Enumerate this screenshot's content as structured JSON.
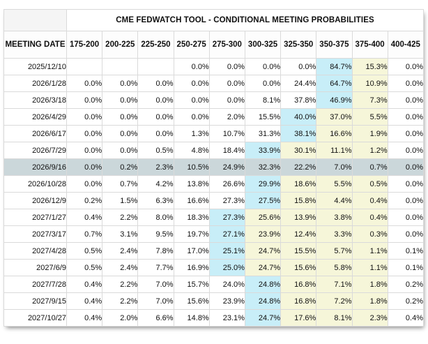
{
  "table": {
    "title": "CME FEDWATCH TOOL - CONDITIONAL MEETING PROBABILITIES",
    "meeting_date_header": "MEETING DATE",
    "colors": {
      "max_probability_cell": "#c8eef8",
      "path_highlight_cell": "#f6f6d9",
      "selected_row": "#cbd7da",
      "corner_cell": "#f5f5f5",
      "grid_border": "#dadada"
    }
  },
  "chart_data": {
    "type": "table",
    "title": "CME FEDWATCH TOOL - CONDITIONAL MEETING PROBABILITIES",
    "row_header": "MEETING DATE",
    "columns": [
      "175-200",
      "200-225",
      "225-250",
      "250-275",
      "275-300",
      "300-325",
      "325-350",
      "350-375",
      "375-400",
      "400-425"
    ],
    "unit": "%",
    "rows": [
      {
        "date": "2025/12/10",
        "values": [
          null,
          null,
          null,
          0.0,
          0.0,
          0.0,
          0.0,
          84.7,
          15.3,
          0.0
        ],
        "highlight": [
          "",
          "",
          "",
          "",
          "",
          "",
          "",
          "cyan",
          "yellow",
          ""
        ],
        "selected": false
      },
      {
        "date": "2026/1/28",
        "values": [
          0.0,
          0.0,
          0.0,
          0.0,
          0.0,
          0.0,
          24.4,
          64.7,
          10.9,
          0.0
        ],
        "highlight": [
          "",
          "",
          "",
          "",
          "",
          "",
          "",
          "cyan",
          "yellow",
          ""
        ],
        "selected": false
      },
      {
        "date": "2026/3/18",
        "values": [
          0.0,
          0.0,
          0.0,
          0.0,
          0.0,
          8.1,
          37.8,
          46.9,
          7.3,
          0.0
        ],
        "highlight": [
          "",
          "",
          "",
          "",
          "",
          "",
          "",
          "cyan",
          "yellow",
          ""
        ],
        "selected": false
      },
      {
        "date": "2026/4/29",
        "values": [
          0.0,
          0.0,
          0.0,
          0.0,
          2.0,
          15.5,
          40.0,
          37.0,
          5.5,
          0.0
        ],
        "highlight": [
          "",
          "",
          "",
          "",
          "",
          "",
          "cyan",
          "yellow",
          "yellow",
          ""
        ],
        "selected": false
      },
      {
        "date": "2026/6/17",
        "values": [
          0.0,
          0.0,
          0.0,
          1.3,
          10.7,
          31.3,
          38.1,
          16.6,
          1.9,
          0.0
        ],
        "highlight": [
          "",
          "",
          "",
          "",
          "",
          "",
          "cyan",
          "yellow",
          "yellow",
          ""
        ],
        "selected": false
      },
      {
        "date": "2026/7/29",
        "values": [
          0.0,
          0.0,
          0.5,
          4.8,
          18.4,
          33.9,
          30.1,
          11.1,
          1.2,
          0.0
        ],
        "highlight": [
          "",
          "",
          "",
          "",
          "",
          "cyan",
          "yellow",
          "yellow",
          "yellow",
          ""
        ],
        "selected": false
      },
      {
        "date": "2026/9/16",
        "values": [
          0.0,
          0.2,
          2.3,
          10.5,
          24.9,
          32.3,
          22.2,
          7.0,
          0.7,
          0.0
        ],
        "highlight": [
          "",
          "",
          "",
          "",
          "",
          "",
          "",
          "",
          "",
          ""
        ],
        "selected": true
      },
      {
        "date": "2026/10/28",
        "values": [
          0.0,
          0.7,
          4.2,
          13.8,
          26.6,
          29.9,
          18.6,
          5.5,
          0.5,
          0.0
        ],
        "highlight": [
          "",
          "",
          "",
          "",
          "",
          "cyan",
          "yellow",
          "yellow",
          "yellow",
          ""
        ],
        "selected": false
      },
      {
        "date": "2026/12/9",
        "values": [
          0.2,
          1.5,
          6.3,
          16.6,
          27.3,
          27.5,
          15.8,
          4.4,
          0.4,
          0.0
        ],
        "highlight": [
          "",
          "",
          "",
          "",
          "",
          "cyan",
          "yellow",
          "yellow",
          "yellow",
          ""
        ],
        "selected": false
      },
      {
        "date": "2027/1/27",
        "values": [
          0.4,
          2.2,
          8.0,
          18.3,
          27.3,
          25.6,
          13.9,
          3.8,
          0.4,
          0.0
        ],
        "highlight": [
          "",
          "",
          "",
          "",
          "cyan",
          "yellow",
          "yellow",
          "yellow",
          "yellow",
          ""
        ],
        "selected": false
      },
      {
        "date": "2027/3/17",
        "values": [
          0.7,
          3.1,
          9.5,
          19.7,
          27.1,
          23.9,
          12.4,
          3.3,
          0.3,
          0.0
        ],
        "highlight": [
          "",
          "",
          "",
          "",
          "cyan",
          "yellow",
          "yellow",
          "yellow",
          "yellow",
          ""
        ],
        "selected": false
      },
      {
        "date": "2027/4/28",
        "values": [
          0.5,
          2.4,
          7.8,
          17.0,
          25.1,
          24.7,
          15.5,
          5.7,
          1.1,
          0.1
        ],
        "highlight": [
          "",
          "",
          "",
          "",
          "cyan",
          "yellow",
          "yellow",
          "yellow",
          "yellow",
          ""
        ],
        "selected": false
      },
      {
        "date": "2027/6/9",
        "values": [
          0.5,
          2.4,
          7.7,
          16.9,
          25.0,
          24.7,
          15.6,
          5.8,
          1.1,
          0.1
        ],
        "highlight": [
          "",
          "",
          "",
          "",
          "cyan",
          "yellow",
          "yellow",
          "yellow",
          "yellow",
          ""
        ],
        "selected": false
      },
      {
        "date": "2027/7/28",
        "values": [
          0.4,
          2.2,
          7.0,
          15.7,
          24.0,
          24.8,
          16.8,
          7.1,
          1.8,
          0.2
        ],
        "highlight": [
          "",
          "",
          "",
          "",
          "",
          "cyan",
          "yellow",
          "yellow",
          "yellow",
          ""
        ],
        "selected": false
      },
      {
        "date": "2027/9/15",
        "values": [
          0.4,
          2.2,
          7.0,
          15.6,
          23.9,
          24.8,
          16.8,
          7.2,
          1.8,
          0.2
        ],
        "highlight": [
          "",
          "",
          "",
          "",
          "",
          "cyan",
          "yellow",
          "yellow",
          "yellow",
          ""
        ],
        "selected": false
      },
      {
        "date": "2027/10/27",
        "values": [
          0.4,
          2.0,
          6.6,
          14.8,
          23.1,
          24.7,
          17.6,
          8.1,
          2.3,
          0.4
        ],
        "highlight": [
          "",
          "",
          "",
          "",
          "",
          "cyan",
          "yellow",
          "yellow",
          "yellow",
          ""
        ],
        "selected": false
      }
    ]
  }
}
